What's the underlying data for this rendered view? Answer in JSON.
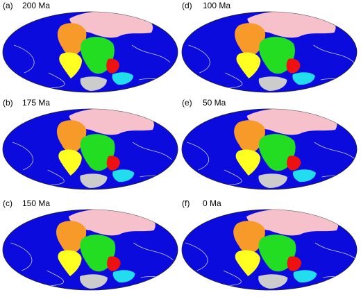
{
  "panels": [
    {
      "label": "(a)",
      "age": "200 Ma"
    },
    {
      "label": "(b)",
      "age": "175 Ma"
    },
    {
      "label": "(c)",
      "age": "150 Ma"
    },
    {
      "label": "(d)",
      "age": "100 Ma"
    },
    {
      "label": "(e)",
      "age": "50 Ma"
    },
    {
      "label": "(f)",
      "age": "0 Ma"
    }
  ]
}
